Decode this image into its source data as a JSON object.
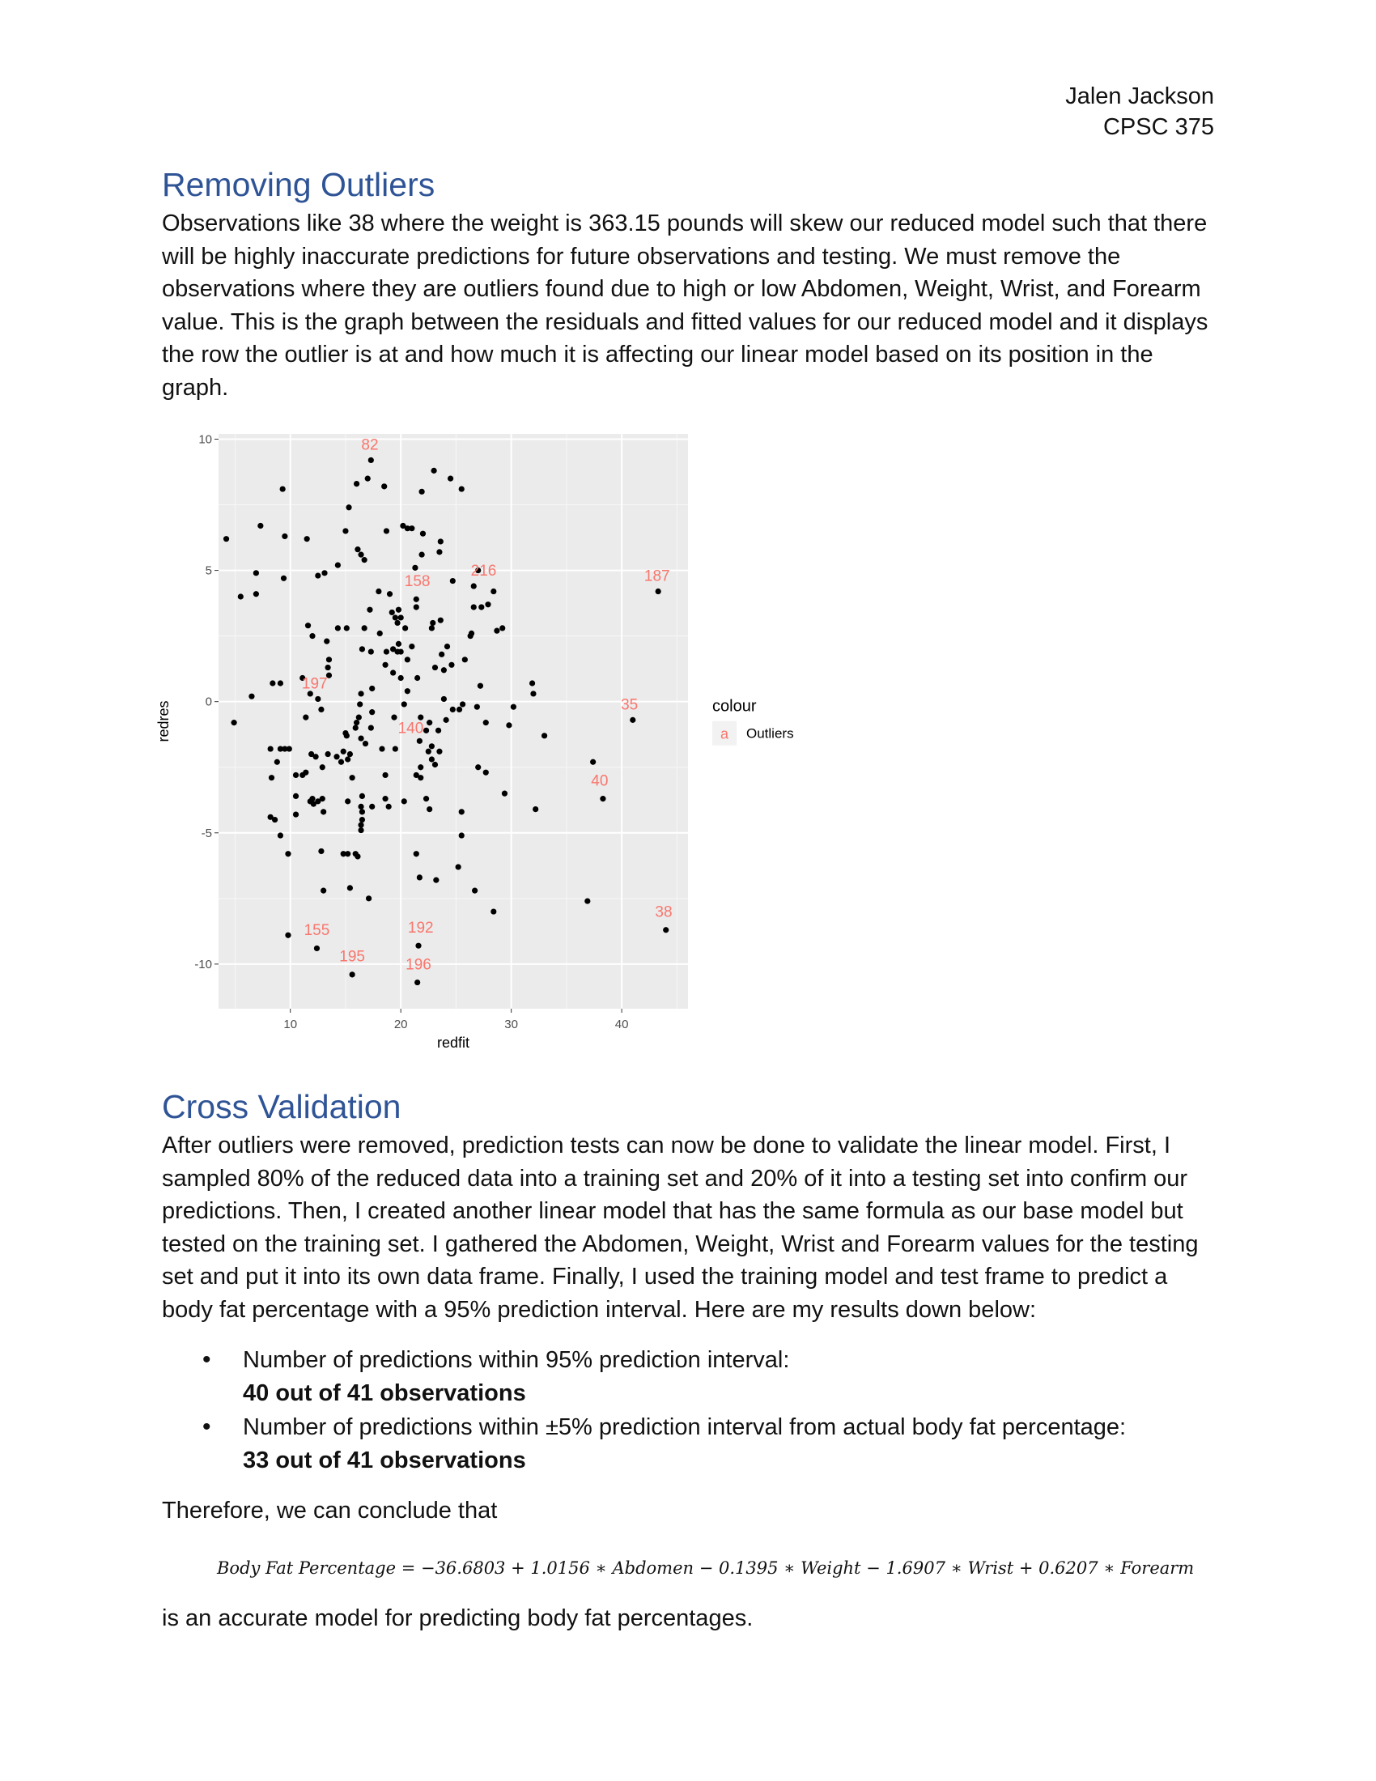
{
  "header": {
    "name": "Jalen Jackson",
    "course": "CPSC 375"
  },
  "section1": {
    "title": "Removing Outliers",
    "paragraph": "Observations like 38 where the weight is 363.15 pounds will skew our reduced model such that there will be highly inaccurate predictions for future observations and testing. We must remove the observations where they are outliers found due to high or low Abdomen, Weight, Wrist, and Forearm value. This is the graph between the residuals and fitted values for our reduced model and it displays the row the outlier is at and how much it is affecting our linear model based on its position in the graph."
  },
  "chart_data": {
    "type": "scatter",
    "xlabel": "redfit",
    "ylabel": "redres",
    "xlim": [
      3.5,
      46
    ],
    "ylim": [
      -11.7,
      10.2
    ],
    "xticks": [
      10,
      20,
      30,
      40
    ],
    "yticks": [
      10,
      5,
      0,
      -5,
      -10
    ],
    "ytick_labels": [
      "10",
      "5",
      "0",
      "-5",
      "-10"
    ],
    "grid": true,
    "legend": {
      "title": "colour",
      "key": "a",
      "label": "Outliers",
      "placement": "right",
      "color": "#f8766d"
    },
    "background": "#ebebeb",
    "point_color": "#000000",
    "label_color": "#f8766d",
    "labels": [
      {
        "text": "82",
        "x": 17.2,
        "y": 9.6
      },
      {
        "text": "158",
        "x": 21.5,
        "y": 4.4
      },
      {
        "text": "216",
        "x": 27.5,
        "y": 4.8
      },
      {
        "text": "187",
        "x": 43.2,
        "y": 4.6
      },
      {
        "text": "197",
        "x": 12.2,
        "y": 0.5
      },
      {
        "text": "35",
        "x": 40.7,
        "y": -0.3
      },
      {
        "text": "140",
        "x": 20.9,
        "y": -1.2
      },
      {
        "text": "40",
        "x": 38.0,
        "y": -3.2
      },
      {
        "text": "38",
        "x": 43.8,
        "y": -8.2
      },
      {
        "text": "155",
        "x": 12.4,
        "y": -8.9
      },
      {
        "text": "192",
        "x": 21.8,
        "y": -8.8
      },
      {
        "text": "195",
        "x": 15.6,
        "y": -9.9
      },
      {
        "text": "196",
        "x": 21.6,
        "y": -10.2
      }
    ],
    "points": [
      [
        17.3,
        9.2
      ],
      [
        23.0,
        8.8
      ],
      [
        17.0,
        8.5
      ],
      [
        24.5,
        8.5
      ],
      [
        16.0,
        8.3
      ],
      [
        18.5,
        8.2
      ],
      [
        9.3,
        8.1
      ],
      [
        25.5,
        8.1
      ],
      [
        21.9,
        8.0
      ],
      [
        15.3,
        7.4
      ],
      [
        7.3,
        6.7
      ],
      [
        20.2,
        6.7
      ],
      [
        21.0,
        6.6
      ],
      [
        20.6,
        6.6
      ],
      [
        18.7,
        6.5
      ],
      [
        15.0,
        6.5
      ],
      [
        22.0,
        6.4
      ],
      [
        9.5,
        6.3
      ],
      [
        11.5,
        6.2
      ],
      [
        4.2,
        6.2
      ],
      [
        23.6,
        6.1
      ],
      [
        16.1,
        5.8
      ],
      [
        23.5,
        5.7
      ],
      [
        21.9,
        5.6
      ],
      [
        16.4,
        5.6
      ],
      [
        16.7,
        5.4
      ],
      [
        14.3,
        5.2
      ],
      [
        21.3,
        5.1
      ],
      [
        27.0,
        5.0
      ],
      [
        13.1,
        4.9
      ],
      [
        6.9,
        4.9
      ],
      [
        12.5,
        4.8
      ],
      [
        9.4,
        4.7
      ],
      [
        24.7,
        4.6
      ],
      [
        26.6,
        4.4
      ],
      [
        28.4,
        4.2
      ],
      [
        18.0,
        4.2
      ],
      [
        19.0,
        4.1
      ],
      [
        6.9,
        4.1
      ],
      [
        5.5,
        4.0
      ],
      [
        21.4,
        3.9
      ],
      [
        26.6,
        3.6
      ],
      [
        27.3,
        3.6
      ],
      [
        27.9,
        3.7
      ],
      [
        19.8,
        3.5
      ],
      [
        17.2,
        3.5
      ],
      [
        21.4,
        3.6
      ],
      [
        19.2,
        3.4
      ],
      [
        19.5,
        3.2
      ],
      [
        20.0,
        3.2
      ],
      [
        19.7,
        3.0
      ],
      [
        23.6,
        3.1
      ],
      [
        22.9,
        3.0
      ],
      [
        22.8,
        2.8
      ],
      [
        20.4,
        2.8
      ],
      [
        14.3,
        2.8
      ],
      [
        15.1,
        2.8
      ],
      [
        16.7,
        2.8
      ],
      [
        29.2,
        2.8
      ],
      [
        28.7,
        2.7
      ],
      [
        26.4,
        2.6
      ],
      [
        26.3,
        2.5
      ],
      [
        11.6,
        2.9
      ],
      [
        12.0,
        2.5
      ],
      [
        18.1,
        2.6
      ],
      [
        13.3,
        2.3
      ],
      [
        19.8,
        2.2
      ],
      [
        21.0,
        2.1
      ],
      [
        24.2,
        2.1
      ],
      [
        23.7,
        1.8
      ],
      [
        19.3,
        2.0
      ],
      [
        16.5,
        2.0
      ],
      [
        17.3,
        1.9
      ],
      [
        19.7,
        1.9
      ],
      [
        18.7,
        1.9
      ],
      [
        20.0,
        1.9
      ],
      [
        13.5,
        1.6
      ],
      [
        20.6,
        1.6
      ],
      [
        25.8,
        1.6
      ],
      [
        24.6,
        1.4
      ],
      [
        23.1,
        1.3
      ],
      [
        23.9,
        1.2
      ],
      [
        18.6,
        1.4
      ],
      [
        13.4,
        1.3
      ],
      [
        19.3,
        1.1
      ],
      [
        21.5,
        0.9
      ],
      [
        13.5,
        1.0
      ],
      [
        20.0,
        0.9
      ],
      [
        11.1,
        0.9
      ],
      [
        9.1,
        0.7
      ],
      [
        8.4,
        0.7
      ],
      [
        31.9,
        0.7
      ],
      [
        17.4,
        0.5
      ],
      [
        20.6,
        0.4
      ],
      [
        16.4,
        0.3
      ],
      [
        27.2,
        0.6
      ],
      [
        32.0,
        0.3
      ],
      [
        6.5,
        0.2
      ],
      [
        11.8,
        0.3
      ],
      [
        23.9,
        0.1
      ],
      [
        12.5,
        0.1
      ],
      [
        16.3,
        -0.1
      ],
      [
        20.3,
        -0.1
      ],
      [
        25.6,
        -0.1
      ],
      [
        24.7,
        -0.3
      ],
      [
        30.2,
        -0.2
      ],
      [
        25.3,
        -0.3
      ],
      [
        26.9,
        -0.2
      ],
      [
        12.8,
        -0.3
      ],
      [
        17.4,
        -0.4
      ],
      [
        24.1,
        -0.7
      ],
      [
        16.2,
        -0.6
      ],
      [
        21.8,
        -0.6
      ],
      [
        11.4,
        -0.6
      ],
      [
        19.4,
        -0.6
      ],
      [
        22.6,
        -0.8
      ],
      [
        16.0,
        -0.8
      ],
      [
        27.7,
        -0.8
      ],
      [
        4.9,
        -0.8
      ],
      [
        29.8,
        -0.9
      ],
      [
        17.3,
        -1.0
      ],
      [
        15.9,
        -1.0
      ],
      [
        23.4,
        -1.1
      ],
      [
        15.0,
        -1.2
      ],
      [
        22.3,
        -1.1
      ],
      [
        15.1,
        -1.3
      ],
      [
        33.0,
        -1.3
      ],
      [
        16.4,
        -1.4
      ],
      [
        21.7,
        -1.5
      ],
      [
        16.8,
        -1.6
      ],
      [
        22.8,
        -1.7
      ],
      [
        22.5,
        -1.9
      ],
      [
        23.5,
        -1.9
      ],
      [
        8.2,
        -1.8
      ],
      [
        9.1,
        -1.8
      ],
      [
        9.5,
        -1.8
      ],
      [
        9.9,
        -1.8
      ],
      [
        18.3,
        -1.8
      ],
      [
        19.5,
        -1.8
      ],
      [
        14.8,
        -1.9
      ],
      [
        11.9,
        -2.0
      ],
      [
        15.4,
        -2.0
      ],
      [
        14.2,
        -2.1
      ],
      [
        12.3,
        -2.1
      ],
      [
        13.4,
        -2.0
      ],
      [
        15.2,
        -2.2
      ],
      [
        22.8,
        -2.2
      ],
      [
        8.8,
        -2.3
      ],
      [
        14.6,
        -2.3
      ],
      [
        37.4,
        -2.3
      ],
      [
        23.1,
        -2.4
      ],
      [
        12.9,
        -2.5
      ],
      [
        27.0,
        -2.5
      ],
      [
        21.8,
        -2.5
      ],
      [
        11.4,
        -2.7
      ],
      [
        27.7,
        -2.7
      ],
      [
        11.1,
        -2.8
      ],
      [
        10.5,
        -2.8
      ],
      [
        15.6,
        -2.9
      ],
      [
        21.8,
        -2.9
      ],
      [
        8.3,
        -2.9
      ],
      [
        18.6,
        -2.8
      ],
      [
        21.4,
        -2.8
      ],
      [
        10.5,
        -3.6
      ],
      [
        12.0,
        -3.7
      ],
      [
        16.5,
        -3.6
      ],
      [
        12.5,
        -3.8
      ],
      [
        12.9,
        -3.7
      ],
      [
        22.3,
        -3.7
      ],
      [
        29.4,
        -3.5
      ],
      [
        18.6,
        -3.7
      ],
      [
        20.3,
        -3.8
      ],
      [
        15.2,
        -3.8
      ],
      [
        18.9,
        -4.0
      ],
      [
        17.4,
        -4.0
      ],
      [
        11.8,
        -3.8
      ],
      [
        12.1,
        -3.9
      ],
      [
        16.4,
        -4.0
      ],
      [
        16.5,
        -4.2
      ],
      [
        22.6,
        -4.1
      ],
      [
        32.2,
        -4.1
      ],
      [
        25.5,
        -4.2
      ],
      [
        13.0,
        -4.2
      ],
      [
        10.5,
        -4.3
      ],
      [
        8.2,
        -4.4
      ],
      [
        16.5,
        -4.5
      ],
      [
        8.6,
        -4.5
      ],
      [
        16.4,
        -4.7
      ],
      [
        16.4,
        -4.9
      ],
      [
        38.3,
        -3.7
      ],
      [
        9.1,
        -5.1
      ],
      [
        25.5,
        -5.1
      ],
      [
        9.8,
        -5.8
      ],
      [
        12.8,
        -5.7
      ],
      [
        14.8,
        -5.8
      ],
      [
        15.2,
        -5.8
      ],
      [
        15.9,
        -5.8
      ],
      [
        16.1,
        -5.9
      ],
      [
        21.4,
        -5.8
      ],
      [
        25.2,
        -6.3
      ],
      [
        21.7,
        -6.7
      ],
      [
        23.2,
        -6.8
      ],
      [
        13.0,
        -7.2
      ],
      [
        15.4,
        -7.1
      ],
      [
        26.7,
        -7.2
      ],
      [
        17.1,
        -7.5
      ],
      [
        36.9,
        -7.6
      ],
      [
        28.4,
        -8.0
      ],
      [
        44.0,
        -8.7
      ],
      [
        9.8,
        -8.9
      ],
      [
        12.4,
        -9.4
      ],
      [
        21.6,
        -9.3
      ],
      [
        15.6,
        -10.4
      ],
      [
        21.5,
        -10.7
      ],
      [
        43.3,
        4.2
      ],
      [
        41.0,
        -0.7
      ]
    ]
  },
  "section2": {
    "title": "Cross Validation",
    "paragraph": "After outliers were removed, prediction tests can now be done to validate the linear model. First, I sampled 80% of the reduced data into a training set and 20% of it into a testing set into confirm our predictions. Then, I created another linear model that has the same formula as our base model but tested on the training set. I gathered the Abdomen, Weight, Wrist and Forearm values for the testing set and put it into its own data frame. Finally, I used the training model and test frame to predict a body fat percentage with a 95% prediction interval. Here are my results down below:",
    "bullets": [
      {
        "text": "Number of predictions within 95% prediction interval:",
        "result": "40 out of 41 observations"
      },
      {
        "text": "Number of predictions within ±5% prediction interval from actual body fat percentage:",
        "result": "33 out of 41 observations"
      }
    ],
    "conclusion_lead": "Therefore, we can conclude that",
    "formula": "Body Fat Percentage = −36.6803 + 1.0156 ∗ Abdomen − 0.1395 ∗ Weight − 1.6907 ∗ Wrist + 0.6207 ∗ Forearm",
    "conclusion_tail": "is an accurate model for predicting body fat percentages."
  }
}
